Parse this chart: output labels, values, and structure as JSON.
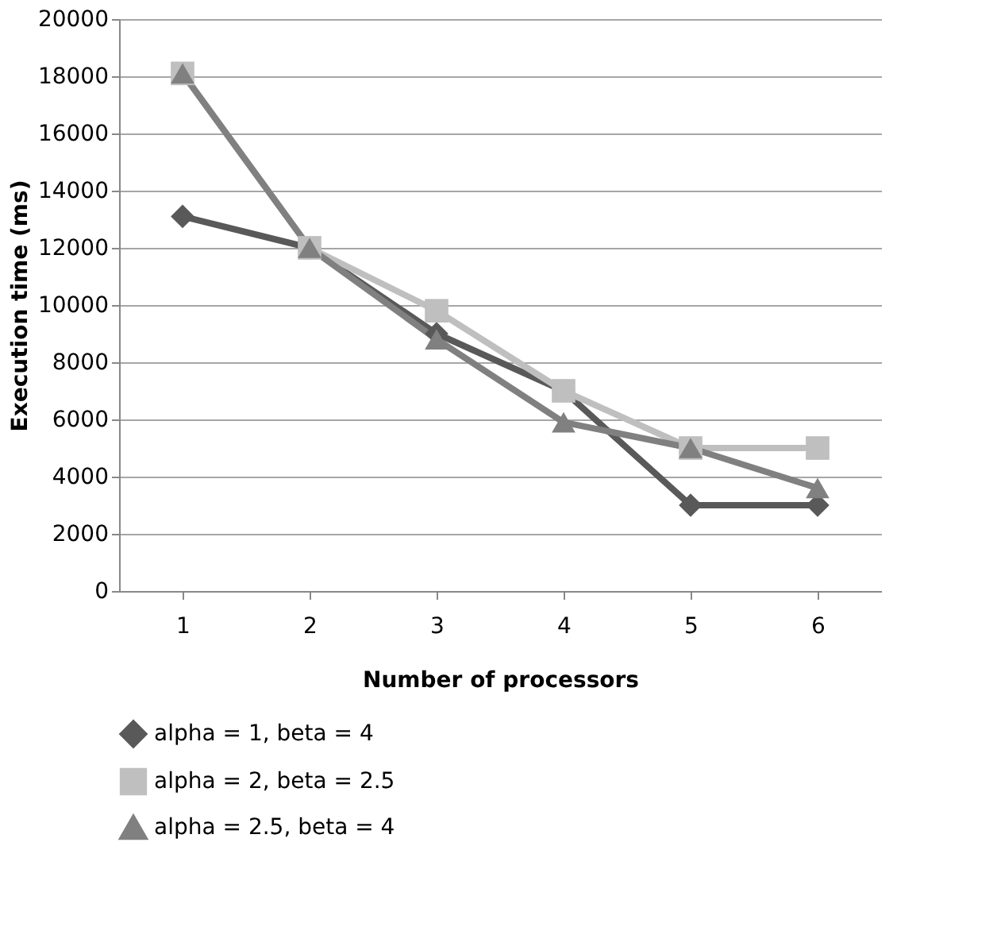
{
  "chart_data": {
    "type": "line",
    "categories": [
      "1",
      "2",
      "3",
      "4",
      "5",
      "6"
    ],
    "xlabel": "Number of processors",
    "ylabel": "Execution time (ms)",
    "ylim": [
      0,
      20000
    ],
    "yticks": [
      0,
      2000,
      4000,
      6000,
      8000,
      10000,
      12000,
      14000,
      16000,
      18000,
      20000
    ],
    "grid": "y",
    "legend": "bottom",
    "series": [
      {
        "name": "alpha = 1, beta = 4",
        "color": "#595959",
        "marker": "diamond",
        "values": [
          13100,
          12000,
          9000,
          7000,
          3000,
          3000
        ]
      },
      {
        "name": "alpha = 2, beta = 2.5",
        "color": "#bfbfbf",
        "marker": "square",
        "values": [
          18100,
          12000,
          9800,
          7000,
          5000,
          5000
        ]
      },
      {
        "name": "alpha = 2.5, beta = 4",
        "color": "#808080",
        "marker": "triangle",
        "values": [
          18100,
          12000,
          8800,
          5900,
          5000,
          3600
        ]
      }
    ]
  }
}
